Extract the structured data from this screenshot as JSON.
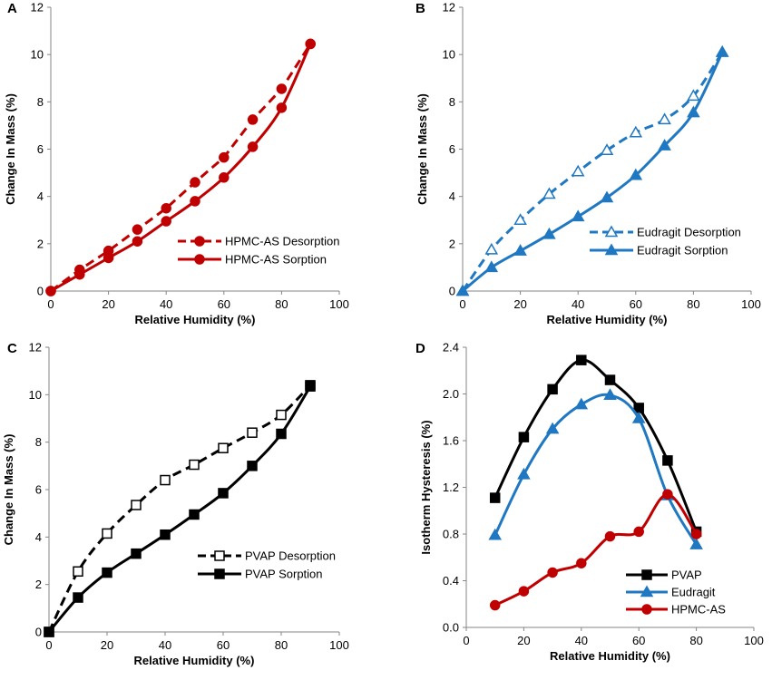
{
  "chart_data": [
    {
      "panel": "A",
      "type": "line",
      "xlabel": "Relative Humidity (%)",
      "ylabel": "Change In Mass (%)",
      "xlim": [
        0,
        100
      ],
      "ylim": [
        0,
        12
      ],
      "xticks": [
        0,
        20,
        40,
        60,
        80,
        100
      ],
      "yticks": [
        0,
        2,
        4,
        6,
        8,
        10,
        12
      ],
      "ytick_decimals": 0,
      "grid": false,
      "legend_position": "lower-right",
      "series": [
        {
          "name": "HPMC-AS Desorption",
          "color": "#c00000",
          "dash": true,
          "smooth": false,
          "marker": "circle",
          "fill": "solid",
          "x": [
            0,
            10,
            20,
            30,
            40,
            50,
            60,
            70,
            80,
            90
          ],
          "y": [
            0,
            0.9,
            1.7,
            2.6,
            3.5,
            4.6,
            5.65,
            7.25,
            8.55,
            10.45
          ]
        },
        {
          "name": "HPMC-AS Sorption",
          "color": "#c00000",
          "dash": false,
          "smooth": true,
          "marker": "circle",
          "fill": "solid",
          "x": [
            0,
            10,
            20,
            30,
            40,
            50,
            60,
            70,
            80,
            90
          ],
          "y": [
            0,
            0.7,
            1.4,
            2.1,
            2.95,
            3.8,
            4.8,
            6.1,
            7.75,
            10.45
          ]
        }
      ]
    },
    {
      "panel": "B",
      "type": "line",
      "xlabel": "Relative Humidity (%)",
      "ylabel": "Change In Mass (%)",
      "xlim": [
        0,
        100
      ],
      "ylim": [
        0,
        12
      ],
      "xticks": [
        0,
        20,
        40,
        60,
        80,
        100
      ],
      "yticks": [
        0,
        2,
        4,
        6,
        8,
        10,
        12
      ],
      "ytick_decimals": 0,
      "grid": false,
      "legend_position": "lower-right",
      "series": [
        {
          "name": "Eudragit Desorption",
          "color": "#1f78c1",
          "dash": true,
          "smooth": true,
          "marker": "triangle",
          "fill": "open",
          "x": [
            0,
            10,
            20,
            30,
            40,
            50,
            60,
            70,
            80,
            90
          ],
          "y": [
            0,
            1.75,
            3.0,
            4.1,
            5.05,
            5.95,
            6.7,
            7.25,
            8.25,
            10.1
          ]
        },
        {
          "name": "Eudragit Sorption",
          "color": "#1f78c1",
          "dash": false,
          "smooth": true,
          "marker": "triangle",
          "fill": "solid",
          "x": [
            0,
            10,
            20,
            30,
            40,
            50,
            60,
            70,
            80,
            90
          ],
          "y": [
            0,
            1.0,
            1.7,
            2.4,
            3.15,
            3.95,
            4.9,
            6.15,
            7.55,
            10.1
          ]
        }
      ]
    },
    {
      "panel": "C",
      "type": "line",
      "xlabel": "Relative Humidity (%)",
      "ylabel": "Change In Mass (%)",
      "xlim": [
        0,
        100
      ],
      "ylim": [
        0,
        12
      ],
      "xticks": [
        0,
        20,
        40,
        60,
        80,
        100
      ],
      "yticks": [
        0,
        2,
        4,
        6,
        8,
        10,
        12
      ],
      "ytick_decimals": 0,
      "grid": false,
      "legend_position": "lower-right",
      "series": [
        {
          "name": "PVAP Desorption",
          "color": "#000000",
          "dash": true,
          "smooth": true,
          "marker": "square",
          "fill": "open",
          "x": [
            0,
            10,
            20,
            30,
            40,
            50,
            60,
            70,
            80,
            90
          ],
          "y": [
            0,
            2.55,
            4.15,
            5.35,
            6.4,
            7.05,
            7.75,
            8.4,
            9.15,
            10.4
          ]
        },
        {
          "name": "PVAP Sorption",
          "color": "#000000",
          "dash": false,
          "smooth": true,
          "marker": "square",
          "fill": "solid",
          "x": [
            0,
            10,
            20,
            30,
            40,
            50,
            60,
            70,
            80,
            90
          ],
          "y": [
            0,
            1.45,
            2.5,
            3.3,
            4.1,
            4.95,
            5.85,
            7.0,
            8.35,
            10.35
          ]
        }
      ]
    },
    {
      "panel": "D",
      "type": "line",
      "xlabel": "Relative Humidity (%)",
      "ylabel": "Isotherm Hysteresis (%)",
      "xlim": [
        0,
        100
      ],
      "ylim": [
        0,
        2.4
      ],
      "xticks": [
        0,
        20,
        40,
        60,
        80,
        100
      ],
      "yticks": [
        0,
        0.4,
        0.8,
        1.2,
        1.6,
        2.0,
        2.4
      ],
      "ytick_decimals": 1,
      "grid": false,
      "legend_position": "lower-right",
      "series": [
        {
          "name": "PVAP",
          "color": "#000000",
          "dash": false,
          "smooth": true,
          "marker": "square",
          "fill": "solid",
          "x": [
            10,
            20,
            30,
            40,
            50,
            60,
            70,
            80
          ],
          "y": [
            1.11,
            1.63,
            2.04,
            2.29,
            2.12,
            1.88,
            1.43,
            0.82
          ]
        },
        {
          "name": "Eudragit",
          "color": "#1f78c1",
          "dash": false,
          "smooth": true,
          "marker": "triangle",
          "fill": "solid",
          "x": [
            10,
            20,
            30,
            40,
            50,
            60,
            70,
            80
          ],
          "y": [
            0.79,
            1.31,
            1.7,
            1.91,
            1.99,
            1.79,
            1.13,
            0.71
          ]
        },
        {
          "name": "HPMC-AS",
          "color": "#c00000",
          "dash": false,
          "smooth": true,
          "marker": "circle",
          "fill": "solid",
          "x": [
            10,
            20,
            30,
            40,
            50,
            60,
            70,
            80
          ],
          "y": [
            0.19,
            0.31,
            0.47,
            0.55,
            0.78,
            0.82,
            1.14,
            0.8
          ]
        }
      ]
    }
  ]
}
